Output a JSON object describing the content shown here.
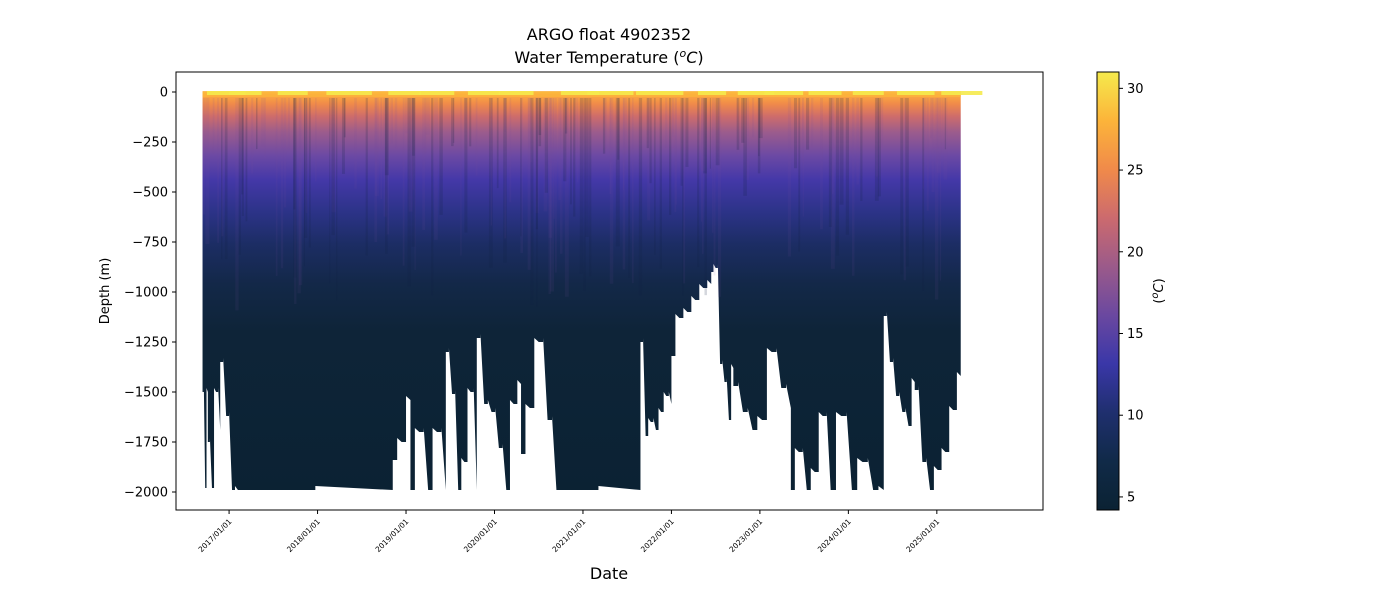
{
  "chart_data": {
    "type": "heatmap",
    "title_line1": "ARGO float 4902352",
    "title_line2_prefix": "Water Temperature (",
    "title_unit_sup": "o",
    "title_unit": "C",
    "title_line2_suffix": ")",
    "xlabel": "Date",
    "ylabel": "Depth (m)",
    "colorbar_label_prefix": "(",
    "colorbar_label_sup": "o",
    "colorbar_label_unit": "C",
    "colorbar_label_suffix": ")",
    "x_ticks": [
      "2017/01/01",
      "2018/01/01",
      "2019/01/01",
      "2020/01/01",
      "2021/01/01",
      "2022/01/01",
      "2023/01/01",
      "2024/01/01",
      "2025/01/01"
    ],
    "x_range_years": [
      2016.4,
      2026.2
    ],
    "data_x_range_years": [
      2016.7,
      2025.27
    ],
    "y_ticks": [
      0,
      -250,
      -500,
      -750,
      -1000,
      -1250,
      -1500,
      -1750,
      -2000
    ],
    "y_tick_labels": [
      "0",
      "−250",
      "−500",
      "−750",
      "−1000",
      "−1250",
      "−1500",
      "−1750",
      "−2000"
    ],
    "y_range": [
      -2090,
      100
    ],
    "colorbar_ticks": [
      5,
      10,
      15,
      20,
      25,
      30
    ],
    "colorbar_range": [
      4.2,
      31.0
    ],
    "colormap": [
      "#0b2233",
      "#102a48",
      "#1f2f6e",
      "#3a37a8",
      "#6a48a0",
      "#9b5a8a",
      "#cc6a6e",
      "#f08a4a",
      "#fcb43a",
      "#f5ea4c"
    ],
    "profile_max_depth_segments": [
      {
        "from": 2016.7,
        "to": 2016.76,
        "depths": [
          1500,
          1980,
          1500
        ]
      },
      {
        "from": 2016.76,
        "to": 2016.9,
        "depths": [
          1750,
          1980,
          1500,
          1690
        ]
      },
      {
        "from": 2016.9,
        "to": 2017.1,
        "depths": [
          1350,
          1620,
          1990,
          1990
        ]
      },
      {
        "from": 2017.1,
        "to": 2018.85,
        "depths": [
          1990
        ]
      },
      {
        "from": 2018.85,
        "to": 2019.05,
        "depths": [
          1840,
          1750,
          1540
        ]
      },
      {
        "from": 2019.05,
        "to": 2019.45,
        "depths": [
          1990,
          1700,
          1990,
          1700,
          1990
        ]
      },
      {
        "from": 2019.45,
        "to": 2019.8,
        "depths": [
          1300,
          1510,
          1990,
          1850,
          1500,
          1990
        ]
      },
      {
        "from": 2019.8,
        "to": 2020.3,
        "depths": [
          1230,
          1560,
          1600,
          1780,
          1990,
          1560,
          1460
        ]
      },
      {
        "from": 2020.3,
        "to": 2020.7,
        "depths": [
          1810,
          1580,
          1250,
          1640,
          1990
        ]
      },
      {
        "from": 2020.7,
        "to": 2021.65,
        "depths": [
          1990
        ]
      },
      {
        "from": 2021.65,
        "to": 2022.0,
        "depths": [
          1250,
          1720,
          1650,
          1690,
          1600,
          1520,
          1560
        ]
      },
      {
        "from": 2022.0,
        "to": 2022.45,
        "depths": [
          1320,
          1130,
          1100,
          1040,
          980,
          960
        ]
      },
      {
        "from": 2022.45,
        "to": 2022.7,
        "depths": [
          900,
          880,
          1360,
          1450,
          1640,
          1380
        ]
      },
      {
        "from": 2022.7,
        "to": 2023.35,
        "depths": [
          1470,
          1600,
          1690,
          1640,
          1300,
          1480,
          1580
        ]
      },
      {
        "from": 2023.35,
        "to": 2023.8,
        "depths": [
          1990,
          1800,
          1990,
          1900,
          1620,
          1990
        ]
      },
      {
        "from": 2023.8,
        "to": 2024.4,
        "depths": [
          1990,
          1620,
          1990,
          1850,
          1990,
          1990
        ]
      },
      {
        "from": 2024.4,
        "to": 2024.75,
        "depths": [
          1120,
          1350,
          1520,
          1600,
          1670,
          1450
        ]
      },
      {
        "from": 2024.75,
        "to": 2025.27,
        "depths": [
          1490,
          1850,
          1990,
          1890,
          1800,
          1590,
          1420
        ]
      }
    ],
    "surface_temperature_range": [
      25,
      30.5
    ],
    "thermocline_depth_m": [
      150,
      700
    ]
  }
}
